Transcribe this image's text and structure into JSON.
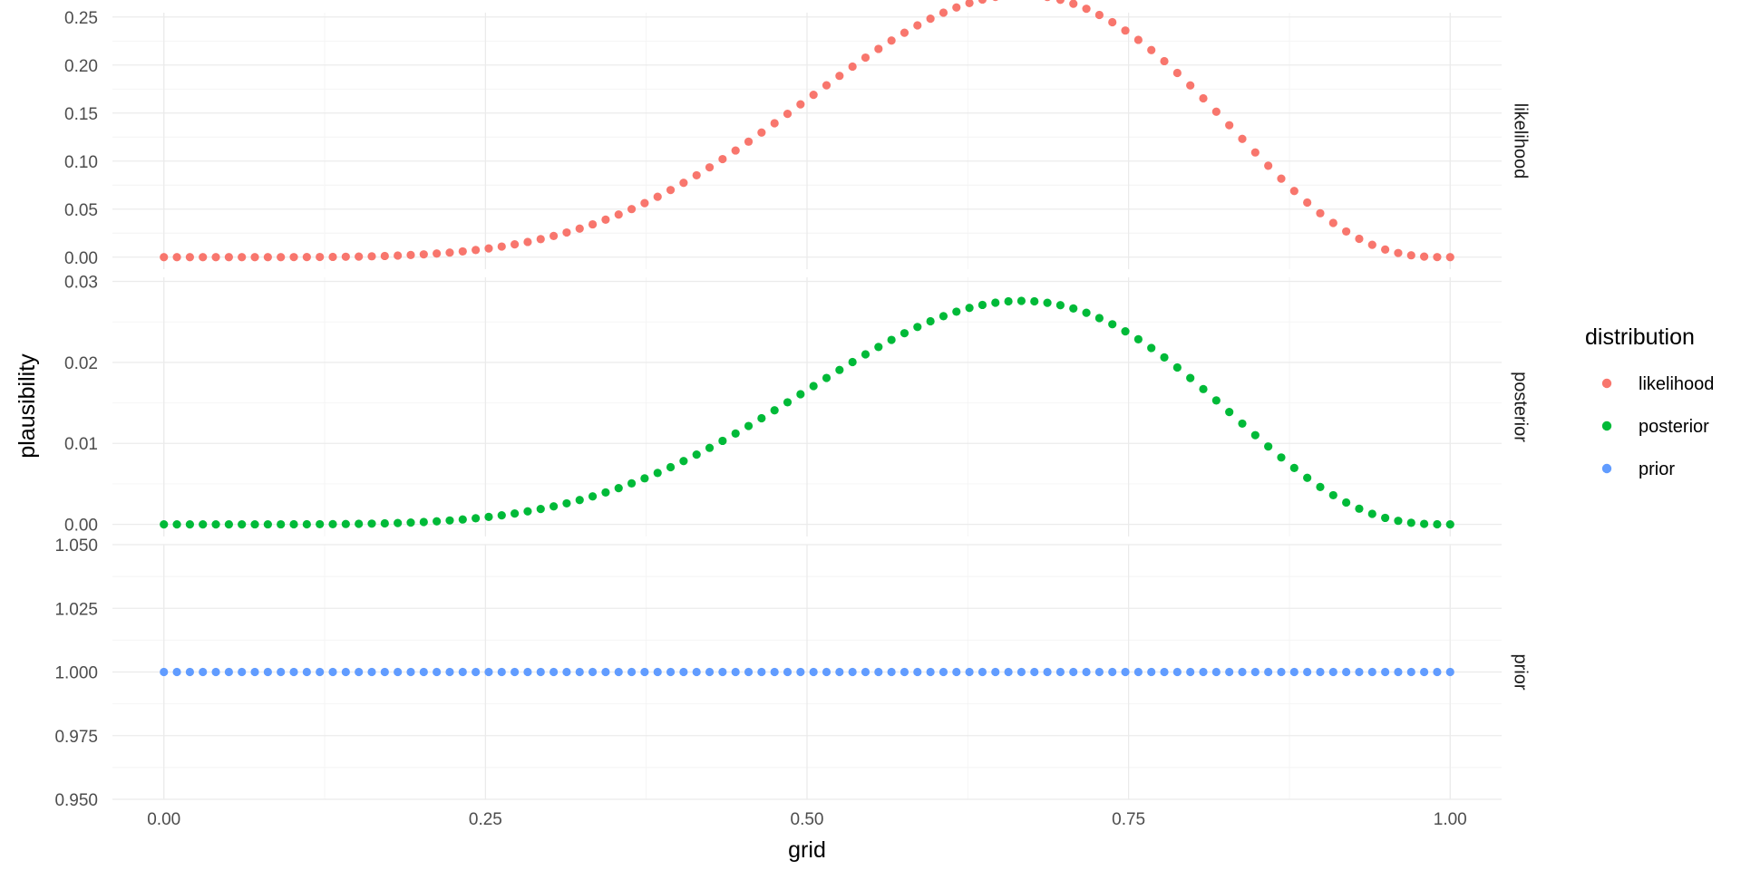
{
  "chart_data": {
    "type": "scatter",
    "title": "",
    "xlabel": "grid",
    "ylabel": "plausibility",
    "xlim": [
      -0.04,
      1.04
    ],
    "x_ticks": [
      0.0,
      0.25,
      0.5,
      0.75,
      1.0
    ],
    "x_tick_labels": [
      "0.00",
      "0.25",
      "0.50",
      "0.75",
      "1.00"
    ],
    "grid": true,
    "legend_position": "right",
    "legend": {
      "title": "distribution",
      "entries": [
        {
          "name": "likelihood",
          "color": "#F8766D"
        },
        {
          "name": "posterior",
          "color": "#00BA38"
        },
        {
          "name": "prior",
          "color": "#619CFF"
        }
      ]
    },
    "grid_points": {
      "from": 0,
      "to": 1,
      "count": 100
    },
    "generator": "binomial(k=6, n=9) likelihood; posterior = likelihood/sum",
    "facets": [
      {
        "strip": "likelihood",
        "series": "likelihood",
        "color": "#F8766D",
        "ylim": [
          -0.0125,
          0.2545
        ],
        "y_ticks": [
          0.0,
          0.05,
          0.1,
          0.15,
          0.2,
          0.25
        ],
        "y_tick_labels": [
          "0.00",
          "0.05",
          "0.10",
          "0.15",
          "0.20",
          "0.25"
        ],
        "peak": {
          "x": 0.6667,
          "y": 0.2731
        }
      },
      {
        "strip": "posterior",
        "series": "posterior",
        "color": "#00BA38",
        "ylim": [
          -0.0015,
          0.0305
        ],
        "y_ticks": [
          0.0,
          0.01,
          0.02,
          0.03
        ],
        "y_tick_labels": [
          "0.00",
          "0.01",
          "0.02",
          "0.03"
        ],
        "peak": {
          "x": 0.6667,
          "y": 0.0276
        }
      },
      {
        "strip": "prior",
        "series": "prior",
        "color": "#619CFF",
        "ylim": [
          0.95,
          1.05
        ],
        "y_ticks": [
          0.95,
          0.975,
          1.0,
          1.025,
          1.05
        ],
        "y_tick_labels": [
          "0.950",
          "0.975",
          "1.000",
          "1.025",
          "1.050"
        ],
        "constant_y": 1.0
      }
    ]
  }
}
